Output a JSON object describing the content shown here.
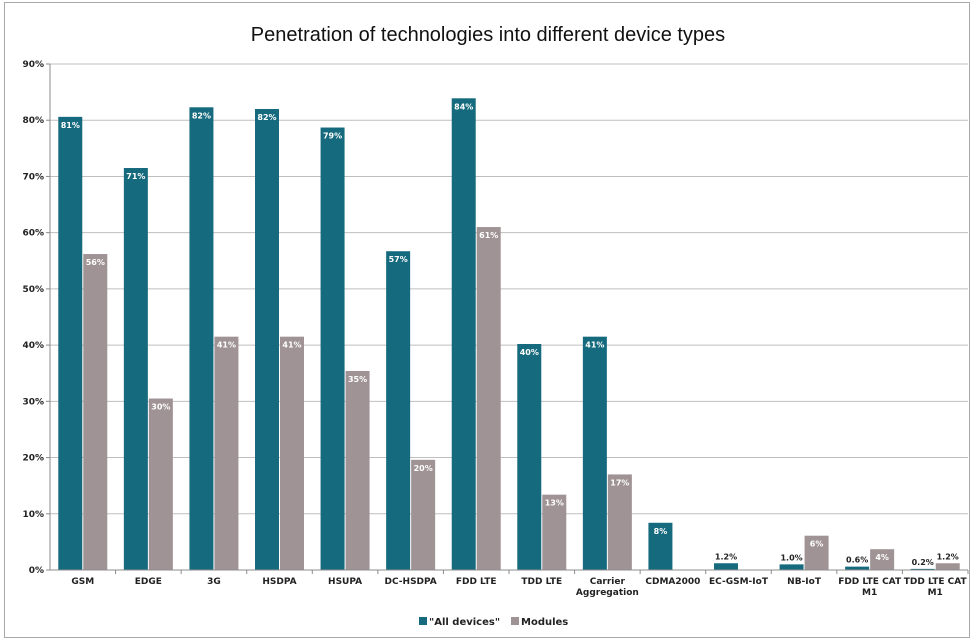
{
  "chart_data": {
    "type": "bar",
    "title": "Penetration of technologies into different device types",
    "xlabel": "",
    "ylabel": "",
    "ylim": [
      0,
      90
    ],
    "yticks": [
      "0%",
      "10%",
      "20%",
      "30%",
      "40%",
      "50%",
      "60%",
      "70%",
      "80%",
      "90%"
    ],
    "grid": true,
    "legend_position": "bottom",
    "categories": [
      [
        "GSM"
      ],
      [
        "EDGE"
      ],
      [
        "3G"
      ],
      [
        "HSDPA"
      ],
      [
        "HSUPA"
      ],
      [
        "DC-HSDPA"
      ],
      [
        "FDD LTE"
      ],
      [
        "TDD LTE"
      ],
      [
        "Carrier",
        "Aggregation"
      ],
      [
        "CDMA2000"
      ],
      [
        "EC-GSM-IoT"
      ],
      [
        "NB-IoT"
      ],
      [
        "FDD LTE CAT",
        "M1"
      ],
      [
        "TDD LTE CAT",
        "M1"
      ]
    ],
    "series": [
      {
        "name": "\"All devices\"",
        "color": "#166a7e",
        "values": [
          80.6,
          71.5,
          82.3,
          82.0,
          78.7,
          56.7,
          83.9,
          40.2,
          41.5,
          8.4,
          1.2,
          1.0,
          0.6,
          0.2
        ],
        "labels": [
          "81%",
          "71%",
          "82%",
          "82%",
          "79%",
          "57%",
          "84%",
          "40%",
          "41%",
          "8%",
          "1.2%",
          "1.0%",
          "0.6%",
          "0.2%"
        ]
      },
      {
        "name": "Modules",
        "color": "#9f9395",
        "values": [
          56.2,
          30.5,
          41.5,
          41.5,
          35.4,
          19.6,
          61.0,
          13.4,
          17.0,
          null,
          null,
          6.1,
          3.7,
          1.2
        ],
        "labels": [
          "56%",
          "30%",
          "41%",
          "41%",
          "35%",
          "20%",
          "61%",
          "13%",
          "17%",
          null,
          null,
          "6%",
          "4%",
          "1.2%"
        ]
      }
    ]
  }
}
